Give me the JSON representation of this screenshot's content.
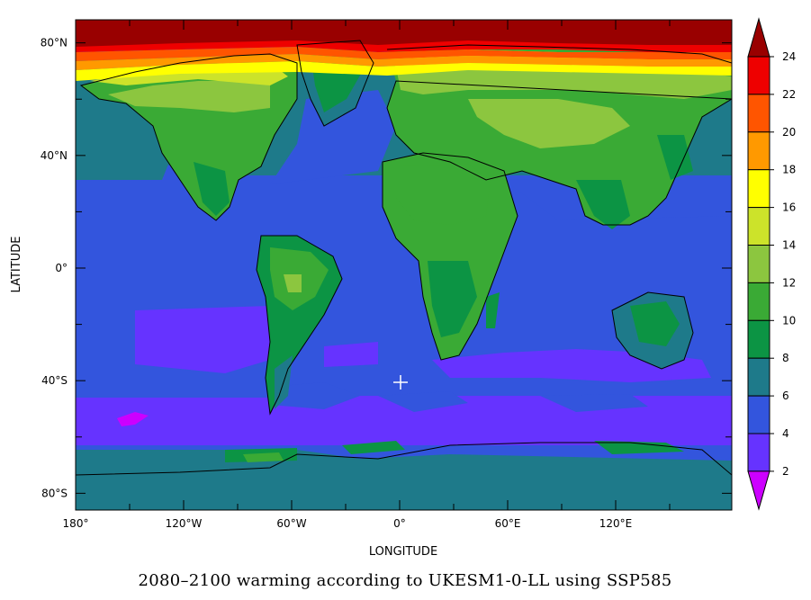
{
  "map": {
    "type": "heatmap",
    "caption": "2080–2100 warming according to UKESM1-0-LL using SSP585",
    "xlabel": "LONGITUDE",
    "ylabel": "LATITUDE",
    "x_ticks": [
      "180°",
      "120°W",
      "60°W",
      "0°",
      "60°E",
      "120°E"
    ],
    "y_ticks": [
      "80°N",
      "40°N",
      "0°",
      "40°S",
      "80°S"
    ],
    "colorbar_labels": [
      "2",
      "4",
      "6",
      "8",
      "10",
      "12",
      "14",
      "16",
      "18",
      "20",
      "22",
      "24"
    ]
  },
  "chart_data": {
    "type": "heatmap",
    "title": "2080–2100 warming according to UKESM1-0-LL using SSP585",
    "xlabel": "LONGITUDE",
    "ylabel": "LATITUDE",
    "xlim": [
      -180,
      180
    ],
    "ylim": [
      -90,
      90
    ],
    "x_tick_values": [
      -180,
      -120,
      -60,
      0,
      60,
      120
    ],
    "y_tick_values": [
      80,
      40,
      0,
      -40,
      -80
    ],
    "colorbar": {
      "levels": [
        2,
        4,
        6,
        8,
        10,
        12,
        14,
        16,
        18,
        20,
        22,
        24
      ],
      "colors": [
        "#cc00ff",
        "#6633ff",
        "#3355dd",
        "#1e7a8a",
        "#0c9444",
        "#3aaa35",
        "#8cc63f",
        "#cce32a",
        "#ffff00",
        "#ff9900",
        "#ff5500",
        "#ee0000",
        "#990000"
      ],
      "extend": "both"
    },
    "zonal_warming_by_latitude": [
      {
        "lat_range": [
          80,
          90
        ],
        "land": 24,
        "ocean": 24
      },
      {
        "lat_range": [
          70,
          80
        ],
        "land": 16,
        "ocean": 19
      },
      {
        "lat_range": [
          60,
          70
        ],
        "land": 14,
        "ocean": 9
      },
      {
        "lat_range": [
          50,
          60
        ],
        "land": 11,
        "ocean": 7
      },
      {
        "lat_range": [
          40,
          50
        ],
        "land": 10,
        "ocean": 7
      },
      {
        "lat_range": [
          30,
          40
        ],
        "land": 10,
        "ocean": 5
      },
      {
        "lat_range": [
          10,
          30
        ],
        "land": 9,
        "ocean": 5
      },
      {
        "lat_range": [
          -10,
          10
        ],
        "land": 9,
        "ocean": 5
      },
      {
        "lat_range": [
          -30,
          -10
        ],
        "land": 8,
        "ocean": 4
      },
      {
        "lat_range": [
          -50,
          -30
        ],
        "land": 7,
        "ocean": 5
      },
      {
        "lat_range": [
          -65,
          -50
        ],
        "land": 4,
        "ocean": 4
      },
      {
        "lat_range": [
          -75,
          -65
        ],
        "land": 8,
        "ocean": 7
      },
      {
        "lat_range": [
          -90,
          -75
        ],
        "land": 6,
        "ocean": 6
      }
    ],
    "grid": false,
    "legend": "colorbar-right"
  }
}
